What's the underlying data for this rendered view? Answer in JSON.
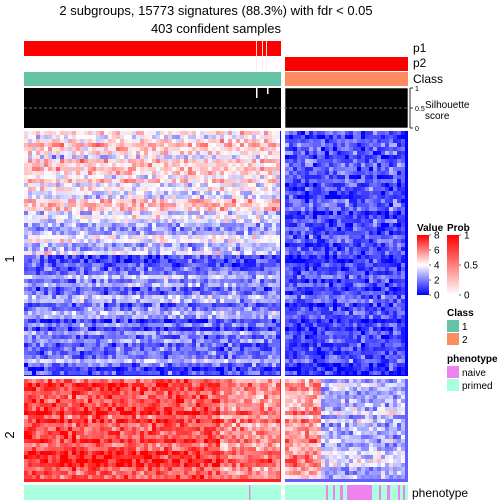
{
  "chart_data": {
    "type": "heatmap",
    "title": "2 subgroups, 15773 signatures (88.3%) with fdr < 0.05",
    "subtitle": "403 confident samples",
    "column_groups": [
      {
        "name": "1",
        "proportion": 0.675
      },
      {
        "name": "2",
        "proportion": 0.325
      }
    ],
    "row_groups": [
      {
        "name": "1",
        "proportion": 0.704
      },
      {
        "name": "2",
        "proportion": 0.296
      }
    ],
    "top_annotations": [
      {
        "label": "p1"
      },
      {
        "label": "p2"
      },
      {
        "label": "Class"
      },
      {
        "label": "Silhouette\nscore",
        "axis_ticks": [
          "1",
          "0.5",
          "0"
        ],
        "reference_line": 0.5
      }
    ],
    "bottom_annotation": {
      "label": "phenotype"
    },
    "legends": {
      "value": {
        "title": "Value",
        "ticks": [
          "8",
          "6",
          "4",
          "2",
          "0"
        ],
        "range": [
          0,
          8
        ],
        "colors": [
          "#0000ff",
          "#ffffff",
          "#ff0000"
        ]
      },
      "prob": {
        "title": "Prob",
        "ticks": [
          "1",
          "0.5",
          "0"
        ],
        "range": [
          0,
          1
        ],
        "colors": [
          "#ffffff",
          "#ff0000"
        ]
      },
      "class": {
        "title": "Class",
        "items": [
          {
            "label": "1",
            "color": "#66c2a5"
          },
          {
            "label": "2",
            "color": "#fc8d62"
          }
        ]
      },
      "phenotype": {
        "title": "phenotype",
        "items": [
          {
            "label": "naive",
            "color": "#ee82ee"
          },
          {
            "label": "primed",
            "color": "#aaffdd"
          }
        ]
      }
    }
  },
  "colors": {
    "low": "#0000ff",
    "mid": "#ffffff",
    "high": "#ff0000",
    "class1": "#66c2a5",
    "class2": "#fc8d62",
    "naive": "#ee82ee",
    "primed": "#aaffdd",
    "silhouette": "#000000"
  }
}
